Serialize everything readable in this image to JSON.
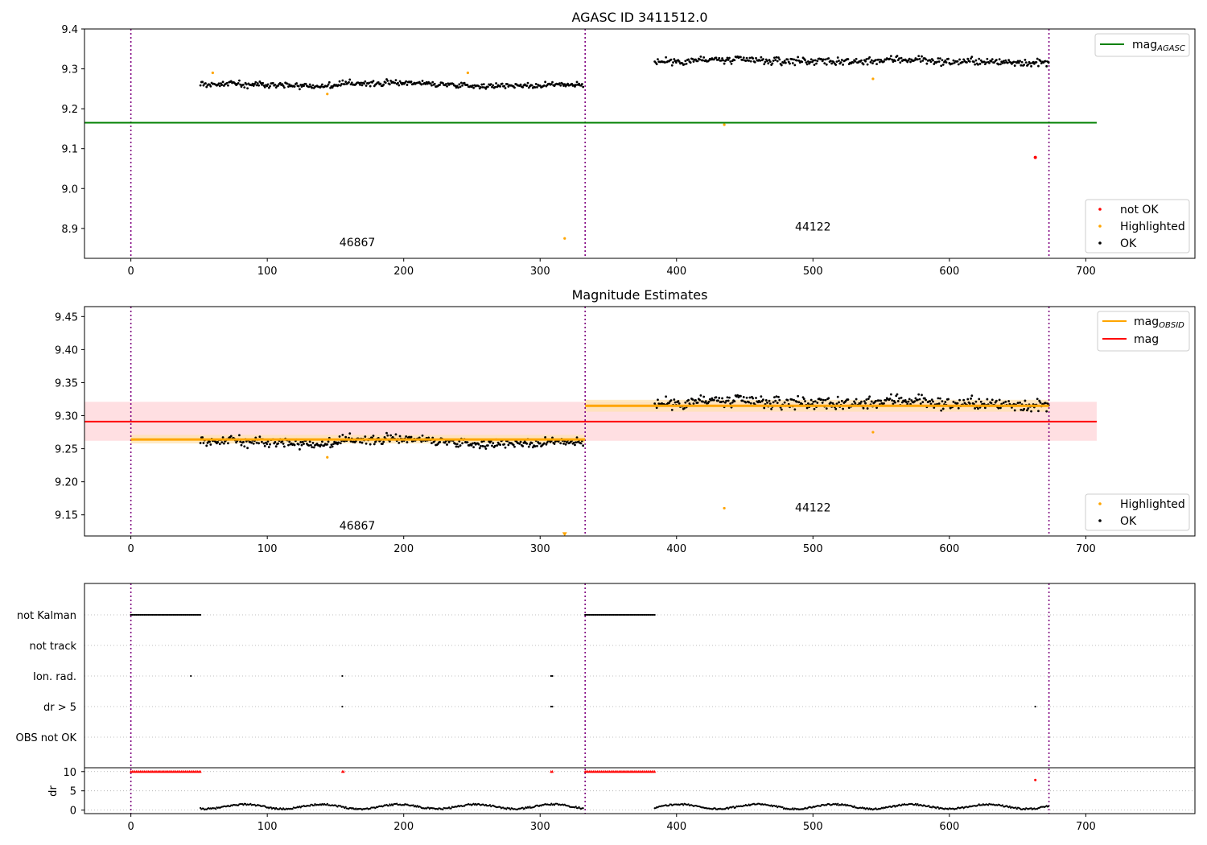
{
  "chart_data": [
    {
      "type": "scatter",
      "title": "AGASC ID 3411512.0",
      "xlim": [
        -34,
        780
      ],
      "ylim": [
        8.825,
        9.4
      ],
      "x_ticks": [
        0,
        100,
        200,
        300,
        400,
        500,
        600,
        700
      ],
      "y_ticks": [
        8.9,
        9.0,
        9.1,
        9.2,
        9.3,
        9.4
      ],
      "obs_boundaries": [
        0,
        333,
        673
      ],
      "hlines": [
        {
          "name": "mag_AGASC",
          "label_main": "mag",
          "label_sub": "AGASC",
          "y": 9.165,
          "x_range": [
            -34,
            708
          ],
          "color": "#008000"
        }
      ],
      "legends": {
        "top_right": [
          {
            "name": "mag_AGASC",
            "label_main": "mag",
            "label_sub": "AGASC",
            "marker": "line",
            "color": "#008000"
          }
        ],
        "bottom_right": [
          {
            "name": "not OK",
            "label": "not OK",
            "marker": "dot",
            "color": "#ff0000"
          },
          {
            "name": "Highlighted",
            "label": "Highlighted",
            "marker": "dot",
            "color": "#ffa500"
          },
          {
            "name": "OK",
            "label": "OK",
            "marker": "dot",
            "color": "#000000"
          }
        ]
      },
      "annotations": [
        {
          "text": "46867",
          "x": 166,
          "y": 8.855
        },
        {
          "text": "44122",
          "x": 500,
          "y": 8.895
        }
      ],
      "segments": [
        {
          "obsid": "46867",
          "x_range": [
            51,
            332
          ],
          "level": 9.262,
          "noise": 0.009
        },
        {
          "obsid": "44122",
          "x_range": [
            384,
            673
          ],
          "level": 9.318,
          "noise": 0.013
        }
      ],
      "highlighted_points": [
        [
          60,
          9.29
        ],
        [
          144,
          9.237
        ],
        [
          247,
          9.29
        ],
        [
          318,
          8.875
        ],
        [
          435,
          9.16
        ],
        [
          544,
          9.275
        ]
      ],
      "not_ok_points": [
        [
          663,
          9.078
        ]
      ]
    },
    {
      "type": "scatter",
      "title": "Magnitude Estimates",
      "xlim": [
        -34,
        780
      ],
      "ylim": [
        9.118,
        9.465
      ],
      "x_ticks": [
        0,
        100,
        200,
        300,
        400,
        500,
        600,
        700
      ],
      "y_ticks": [
        9.15,
        9.2,
        9.25,
        9.3,
        9.35,
        9.4,
        9.45
      ],
      "obs_boundaries": [
        0,
        333,
        673
      ],
      "mag": {
        "name": "mag",
        "y": 9.291,
        "band": [
          9.262,
          9.321
        ],
        "x_range": [
          -34,
          708
        ],
        "color": "#ff0000"
      },
      "mag_obsid": [
        {
          "name": "46867",
          "y": 9.264,
          "band": [
            9.258,
            9.271
          ],
          "x_range": [
            0,
            333
          ]
        },
        {
          "name": "44122",
          "y": 9.315,
          "band": [
            9.306,
            9.324
          ],
          "x_range": [
            333,
            673
          ]
        }
      ],
      "legends": {
        "top_right": [
          {
            "name": "mag_OBSID",
            "label_main": "mag",
            "label_sub": "OBSID",
            "marker": "line",
            "color": "#ffa500"
          },
          {
            "name": "mag",
            "label_main": "mag",
            "label_sub": "",
            "marker": "line",
            "color": "#ff0000"
          }
        ],
        "bottom_right": [
          {
            "name": "Highlighted",
            "label": "Highlighted",
            "marker": "dot",
            "color": "#ffa500"
          },
          {
            "name": "OK",
            "label": "OK",
            "marker": "dot",
            "color": "#000000"
          }
        ]
      },
      "annotations": [
        {
          "text": "46867",
          "x": 166,
          "y": 9.128
        },
        {
          "text": "44122",
          "x": 500,
          "y": 9.155
        }
      ],
      "segments": [
        {
          "obsid": "46867",
          "x_range": [
            51,
            332
          ],
          "level": 9.262,
          "noise": 0.009
        },
        {
          "obsid": "44122",
          "x_range": [
            384,
            673
          ],
          "level": 9.318,
          "noise": 0.013
        }
      ],
      "highlighted_points": [
        [
          144,
          9.237
        ],
        [
          435,
          9.16
        ],
        [
          544,
          9.275
        ]
      ],
      "offscale_marker": {
        "x": 318,
        "y": 9.12
      }
    },
    {
      "type": "scatter",
      "title": "",
      "xlim": [
        -34,
        780
      ],
      "x_ticks": [
        0,
        100,
        200,
        300,
        400,
        500,
        600,
        700
      ],
      "obs_boundaries": [
        0,
        333,
        673
      ],
      "flag_rows": [
        "not Kalman",
        "not track",
        "Ion. rad.",
        "dr > 5",
        "OBS not OK"
      ],
      "flag_points": [
        {
          "flag": "not Kalman",
          "x_ranges": [
            [
              0,
              51
            ],
            [
              333,
              384
            ]
          ]
        },
        {
          "flag": "not track",
          "x_ranges": []
        },
        {
          "flag": "Ion. rad.",
          "x_values": [
            44,
            155,
            308,
            309
          ]
        },
        {
          "flag": "dr > 5",
          "x_values": [
            155,
            308,
            309,
            663
          ]
        },
        {
          "flag": "OBS not OK",
          "x_ranges": []
        }
      ],
      "dr": {
        "ylabel": "dr",
        "ylim": [
          -0.5,
          11
        ],
        "y_ticks": [
          0,
          5,
          10
        ],
        "clipped_value": 10,
        "clipped_ranges": [
          [
            0,
            51
          ],
          [
            155,
            156
          ],
          [
            308,
            309
          ],
          [
            333,
            384
          ]
        ],
        "outliers": [
          [
            663,
            7.8
          ]
        ],
        "segments": [
          {
            "x_range": [
              51,
              332
            ]
          },
          {
            "x_range": [
              384,
              673
            ]
          }
        ]
      }
    }
  ]
}
